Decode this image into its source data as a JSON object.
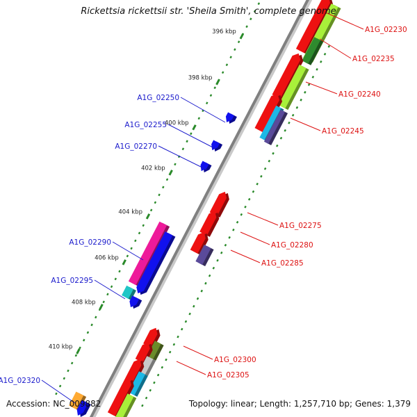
{
  "title": "Rickettsia rickettsii str. 'Sheila Smith', complete genome",
  "footer": {
    "accession": "Accession: NC_009882",
    "summary": "Topology: linear; Length: 1,257,710 bp; Genes: 1,379"
  },
  "ticks": [
    {
      "label": "396 kbp"
    },
    {
      "label": "398 kbp"
    },
    {
      "label": "400 kbp"
    },
    {
      "label": "402 kbp"
    },
    {
      "label": "404 kbp"
    },
    {
      "label": "406 kbp"
    },
    {
      "label": "408 kbp"
    },
    {
      "label": "410 kbp"
    }
  ],
  "gene_labels": [
    {
      "text": "A1G_02230",
      "strand": "forward",
      "color": "#dd1111"
    },
    {
      "text": "A1G_02235",
      "strand": "forward",
      "color": "#dd1111"
    },
    {
      "text": "A1G_02240",
      "strand": "forward",
      "color": "#dd1111"
    },
    {
      "text": "A1G_02245",
      "strand": "forward",
      "color": "#dd1111"
    },
    {
      "text": "A1G_02250",
      "strand": "reverse",
      "color": "#1a1acc"
    },
    {
      "text": "A1G_02255",
      "strand": "reverse",
      "color": "#1a1acc"
    },
    {
      "text": "A1G_02270",
      "strand": "reverse",
      "color": "#1a1acc"
    },
    {
      "text": "A1G_02275",
      "strand": "forward",
      "color": "#dd1111"
    },
    {
      "text": "A1G_02280",
      "strand": "forward",
      "color": "#dd1111"
    },
    {
      "text": "A1G_02285",
      "strand": "forward",
      "color": "#dd1111"
    },
    {
      "text": "A1G_02290",
      "strand": "reverse",
      "color": "#1a1acc"
    },
    {
      "text": "A1G_02295",
      "strand": "reverse",
      "color": "#1a1acc"
    },
    {
      "text": "A1G_02300",
      "strand": "forward",
      "color": "#dd1111"
    },
    {
      "text": "A1G_02305",
      "strand": "forward",
      "color": "#dd1111"
    },
    {
      "text": "A1G_02320",
      "strand": "reverse",
      "color": "#1a1acc"
    }
  ],
  "colors": {
    "backbone": "#808080",
    "gc_dots": "#2a8a2a",
    "forward_cds": "#ee1111",
    "reverse_cds": "#1111ee",
    "lime_feature": "#a8f03a",
    "green_feature": "#2e8b2e",
    "cyan_feature": "#1cb8e6",
    "purple_feature": "#5a4a9a",
    "magenta_feature": "#ee1a9a",
    "teal_feature": "#20c6c6",
    "olive_feature": "#6b8c2a",
    "grey_feature": "#c8c8c8",
    "orange_feature": "#ffaa33",
    "label_forward": "#dd1111",
    "label_reverse": "#1a1acc"
  }
}
